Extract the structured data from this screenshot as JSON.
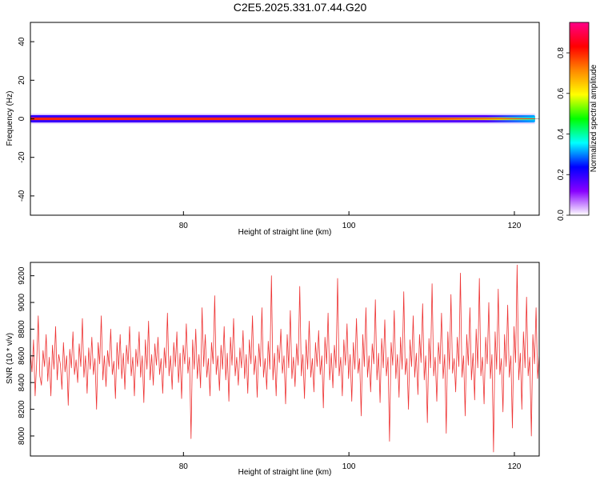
{
  "title": "C2E5.2025.331.07.44.G20",
  "chart_data": [
    {
      "type": "heatmap",
      "name": "spectrogram",
      "xlabel": "Height of straight line (km)",
      "ylabel": "Frequency (Hz)",
      "xlim": [
        61.5,
        123
      ],
      "ylim": [
        -50,
        50
      ],
      "xticks": [
        80,
        100,
        120
      ],
      "yticks": [
        40,
        20,
        0,
        -20,
        -40
      ],
      "band": {
        "center_hz": 0,
        "half_width_hz": 1.5,
        "x_start": 61.5,
        "x_end": 122.5
      },
      "colorbar": {
        "label": "Normalized spectral amplitude",
        "range": [
          0,
          0.95
        ],
        "ticks": [
          0.0,
          0.2,
          0.4,
          0.6,
          0.8
        ],
        "colors": [
          "#ffffff",
          "#8800ff",
          "#0000ff",
          "#00ffff",
          "#00ff00",
          "#ffff00",
          "#ff8800",
          "#ff0000",
          "#ff0088"
        ]
      },
      "line_color": "#ff2222"
    },
    {
      "type": "line",
      "name": "snr",
      "xlabel": "Height of straight line (km)",
      "ylabel": "SNR (10 * v/v)",
      "xlim": [
        61.5,
        123
      ],
      "ylim": [
        7850,
        9300
      ],
      "xticks": [
        80,
        100,
        120
      ],
      "yticks": [
        8000,
        8200,
        8400,
        8600,
        8800,
        9000,
        9200
      ],
      "series_color": "#ee3333",
      "series": [
        {
          "name": "SNR",
          "x_start": 61.5,
          "x_end": 123,
          "values": [
            8620,
            8480,
            8720,
            8300,
            8560,
            8900,
            8450,
            8380,
            8640,
            8520,
            8760,
            8410,
            8590,
            8300,
            8680,
            8500,
            8820,
            8420,
            8610,
            8540,
            8350,
            8700,
            8480,
            8600,
            8230,
            8650,
            8510,
            8780,
            8460,
            8570,
            8400,
            8690,
            8520,
            8880,
            8440,
            8600,
            8320,
            8660,
            8500,
            8740,
            8460,
            8580,
            8200,
            8700,
            8540,
            8900,
            8420,
            8600,
            8370,
            8640,
            8520,
            8800,
            8460,
            8560,
            8280,
            8700,
            8500,
            8760,
            8430,
            8620,
            8350,
            8680,
            8540,
            8820,
            8450,
            8590,
            8300,
            8650,
            8520,
            8780,
            8440,
            8600,
            8250,
            8720,
            8500,
            8860,
            8420,
            8610,
            8380,
            8690,
            8530,
            8740,
            8460,
            8580,
            8320,
            8660,
            8510,
            8920,
            8450,
            8600,
            8350,
            8700,
            8520,
            8780,
            8400,
            8620,
            8280,
            8680,
            8540,
            8840,
            8470,
            8590,
            7980,
            8720,
            8500,
            8800,
            8430,
            8610,
            8360,
            8960,
            8520,
            8760,
            8440,
            8580,
            8300,
            8700,
            8540,
            9050,
            8460,
            8600,
            8340,
            8680,
            8500,
            8820,
            8420,
            8620,
            8260,
            8740,
            8530,
            8880,
            8450,
            8590,
            8380,
            8660,
            8510,
            8790,
            8430,
            8610,
            8320,
            8720,
            8540,
            8900,
            8460,
            8600,
            8290,
            8690,
            8520,
            8960,
            8440,
            8580,
            8350,
            8710,
            8500,
            9200,
            8420,
            8620,
            8300,
            8680,
            8550,
            8800,
            8470,
            8600,
            8240,
            8760,
            8510,
            8940,
            8430,
            8590,
            8370,
            8690,
            8530,
            9120,
            8450,
            8610,
            8280,
            8720,
            8500,
            8860,
            8440,
            8580,
            8330,
            8700,
            8520,
            8790,
            8460,
            8600,
            8210,
            8740,
            8540,
            8920,
            8420,
            8620,
            8360,
            8680,
            8510,
            9180,
            8450,
            8590,
            8300,
            8720,
            8530,
            8840,
            8430,
            8610,
            8260,
            8700,
            8500,
            8880,
            8470,
            8580,
            8150,
            8760,
            8520,
            8960,
            8440,
            8600,
            8330,
            8690,
            8540,
            9020,
            8420,
            8620,
            8250,
            8730,
            8510,
            8870,
            8450,
            8590,
            7960,
            8700,
            8530,
            8940,
            8430,
            8610,
            8290,
            8740,
            8500,
            9080,
            8460,
            8580,
            8200,
            8720,
            8520,
            8900,
            8440,
            8620,
            8310,
            8760,
            8550,
            8990,
            8420,
            8600,
            8100,
            8730,
            8510,
            9140,
            8450,
            8590,
            8260,
            8700,
            8540,
            8920,
            8430,
            8610,
            8020,
            8780,
            8500,
            9060,
            8470,
            8580,
            8330,
            8740,
            8520,
            9220,
            8440,
            8600,
            8150,
            8760,
            8530,
            8960,
            8420,
            8620,
            8270,
            8800,
            8510,
            9180,
            8450,
            8590,
            8240,
            8740,
            8540,
            9000,
            8430,
            8610,
            7880,
            8780,
            8500,
            9100,
            8460,
            8580,
            8180,
            8760,
            8520,
            8980,
            8440,
            8600,
            8060,
            8820,
            8550,
            9280,
            8420,
            8620,
            8200,
            8780,
            8510,
            9040,
            8450,
            8590,
            8000,
            8760,
            8540,
            8960,
            8430,
            8610
          ]
        }
      ]
    }
  ]
}
